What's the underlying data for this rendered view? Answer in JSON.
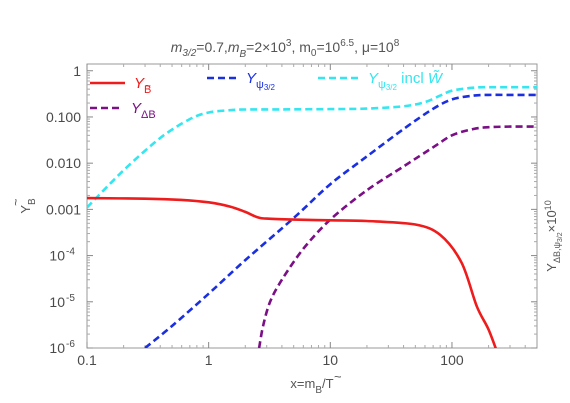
{
  "chart_data": {
    "type": "line",
    "title": "m₃₂=0.7,m̃B=2×10³, m₀=10⁶·⁵, μ=10⁸",
    "title_parts": {
      "mgrav": "m",
      "mgrav_sub": "3/2",
      "mgrav_val": "=0.7,",
      "mbino": "m",
      "mbino_sub": "B",
      "mbino_tilde": "~",
      "mbino_val": "=2×10",
      "mbino_exp": "3",
      "m0": ", m",
      "m0_sub": "0",
      "m0_val": "=10",
      "m0_exp": "6.5",
      "mu": ", μ=10",
      "mu_exp": "8"
    },
    "xlabel": "x=m̃B/T",
    "xlabel_parts": {
      "pre": "x=m",
      "sub": "B",
      "tilde": "~",
      "post": "/T"
    },
    "ylabel_left": "ỸB",
    "ylabel_left_parts": {
      "main": "Y",
      "sub": "B",
      "tilde": "~"
    },
    "ylabel_right": "YΔB,ψ3/2×10¹⁰",
    "ylabel_right_parts": {
      "main": "Y",
      "sub": "ΔB,ψ",
      "sub2": "3/2",
      "mult": "×10",
      "exp": "10"
    },
    "x_scale": "log",
    "y_scale": "log",
    "xlim": [
      0.1,
      500
    ],
    "ylim": [
      1e-06,
      1.4
    ],
    "x_ticks": [
      {
        "value": 0.1,
        "label": "0.1"
      },
      {
        "value": 1,
        "label": "1"
      },
      {
        "value": 10,
        "label": "10"
      },
      {
        "value": 100,
        "label": "100"
      }
    ],
    "y_ticks": [
      {
        "value": 1,
        "label": "1",
        "style": "plain"
      },
      {
        "value": 0.1,
        "label": "0.100",
        "style": "plain"
      },
      {
        "value": 0.01,
        "label": "0.010",
        "style": "plain"
      },
      {
        "value": 0.001,
        "label": "0.001",
        "style": "plain"
      },
      {
        "value": 0.0001,
        "label": "10",
        "exp": "-4",
        "style": "power"
      },
      {
        "value": 1e-05,
        "label": "10",
        "exp": "-5",
        "style": "power"
      },
      {
        "value": 1e-06,
        "label": "10",
        "exp": "-6",
        "style": "power"
      }
    ],
    "grid": false,
    "legend_position": "top",
    "legend": [
      {
        "series": "bino",
        "main": "Y",
        "sub": "B",
        "tilde": "~"
      },
      {
        "series": "gravitino",
        "main": "Y",
        "sub": "ψ",
        "sub2": "3/2"
      },
      {
        "series": "gravitino_incl",
        "main": "Y",
        "sub": "ψ",
        "sub2": "3/2",
        "suffix": " incl ",
        "w": "W̃"
      },
      {
        "series": "deltaB",
        "main": "Y",
        "sub": "ΔB"
      }
    ],
    "series": [
      {
        "key": "bino",
        "color": "#ee1c1c",
        "dash": "solid",
        "x": [
          0.1,
          0.3,
          0.6,
          1.0,
          1.5,
          2.0,
          2.5,
          3.0,
          5,
          10,
          20,
          50,
          80,
          120,
          160,
          200,
          240
        ],
        "values": [
          0.00175,
          0.0017,
          0.0016,
          0.00142,
          0.00115,
          0.00088,
          0.00068,
          0.00063,
          0.0006,
          0.00058,
          0.00056,
          0.00047,
          0.00028,
          7e-05,
          8e-06,
          2.5e-06,
          7e-07
        ]
      },
      {
        "key": "gravitino",
        "color": "#1a2fe0",
        "dash": "dashed",
        "x": [
          0.3,
          0.5,
          1.0,
          2.0,
          5,
          10,
          20,
          40,
          70,
          100,
          150,
          200,
          300,
          500
        ],
        "values": [
          1e-06,
          3e-06,
          1.5e-05,
          8e-05,
          0.00065,
          0.0035,
          0.014,
          0.055,
          0.15,
          0.24,
          0.29,
          0.3,
          0.3,
          0.3
        ]
      },
      {
        "key": "gravitino_incl",
        "color": "#33e6f0",
        "dash": "dashed",
        "x": [
          0.1,
          0.2,
          0.4,
          0.7,
          1.0,
          1.5,
          2.0,
          4,
          10,
          20,
          40,
          60,
          80,
          100,
          150,
          200,
          300,
          500
        ],
        "values": [
          0.0011,
          0.007,
          0.035,
          0.09,
          0.125,
          0.14,
          0.145,
          0.146,
          0.148,
          0.152,
          0.17,
          0.21,
          0.29,
          0.37,
          0.43,
          0.44,
          0.44,
          0.44
        ]
      },
      {
        "key": "deltaB",
        "color": "#7a0f86",
        "dash": "dashed",
        "x": [
          2.6,
          2.8,
          3.2,
          4,
          6,
          10,
          20,
          40,
          70,
          100,
          150,
          200,
          300,
          500
        ],
        "values": [
          1e-06,
          3e-06,
          1e-05,
          3e-05,
          0.00014,
          0.0006,
          0.0026,
          0.0085,
          0.022,
          0.04,
          0.055,
          0.06,
          0.062,
          0.062
        ]
      }
    ]
  }
}
